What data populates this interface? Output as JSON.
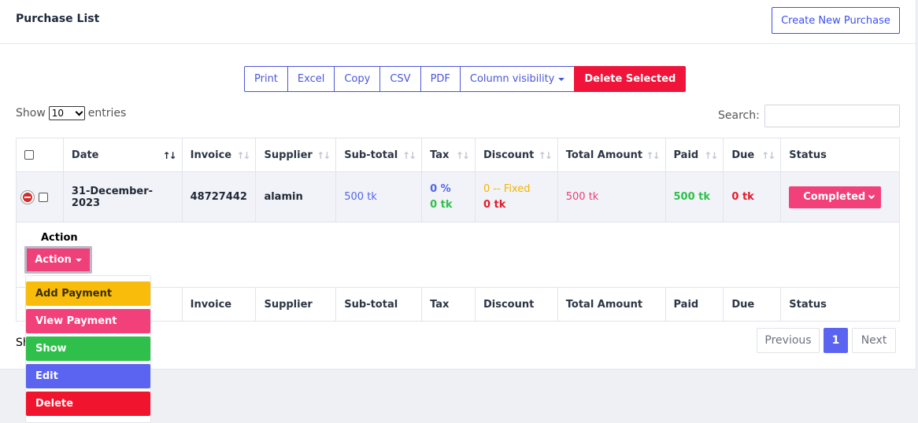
{
  "header": {
    "title": "Purchase List",
    "create_button": "Create New Purchase"
  },
  "export_buttons": [
    "Print",
    "Excel",
    "Copy",
    "CSV",
    "PDF",
    "Column visibility",
    "Delete Selected"
  ],
  "length_menu": {
    "prefix": "Show",
    "selected": "10",
    "suffix": "entries"
  },
  "search": {
    "label": "Search:",
    "value": ""
  },
  "table": {
    "columns": [
      "Date",
      "Invoice",
      "Supplier",
      "Sub-total",
      "Tax",
      "Discount",
      "Total Amount",
      "Paid",
      "Due",
      "Status"
    ],
    "rows": [
      {
        "date": "31-December-2023",
        "invoice": "48727442",
        "supplier": "alamin",
        "subtotal": "500 tk",
        "tax_rate": "0 %",
        "tax_amount": "0 tk",
        "discount_type": "0 -- Fixed",
        "discount_amount": "0 tk",
        "total": "500 tk",
        "paid": "500 tk",
        "due": "0 tk",
        "status": "Completed"
      }
    ],
    "child": {
      "label": "Action",
      "button": "Action"
    }
  },
  "action_menu": {
    "items": [
      {
        "label": "Add Payment",
        "color": "#f9bc0b"
      },
      {
        "label": "View Payment",
        "color": "#f2407a"
      },
      {
        "label": "Show",
        "color": "#2ec04a"
      },
      {
        "label": "Edit",
        "color": "#5a64f0"
      },
      {
        "label": "Delete",
        "color": "#f0142e"
      }
    ]
  },
  "info": {
    "text": "Sh"
  },
  "pagination": {
    "previous": "Previous",
    "current": "1",
    "next": "Next"
  },
  "colors": {
    "primary": "#5a64f0",
    "danger": "#f0143a",
    "pink": "#f2407a",
    "success": "#2ec04a",
    "warning": "#f9bc0b"
  }
}
